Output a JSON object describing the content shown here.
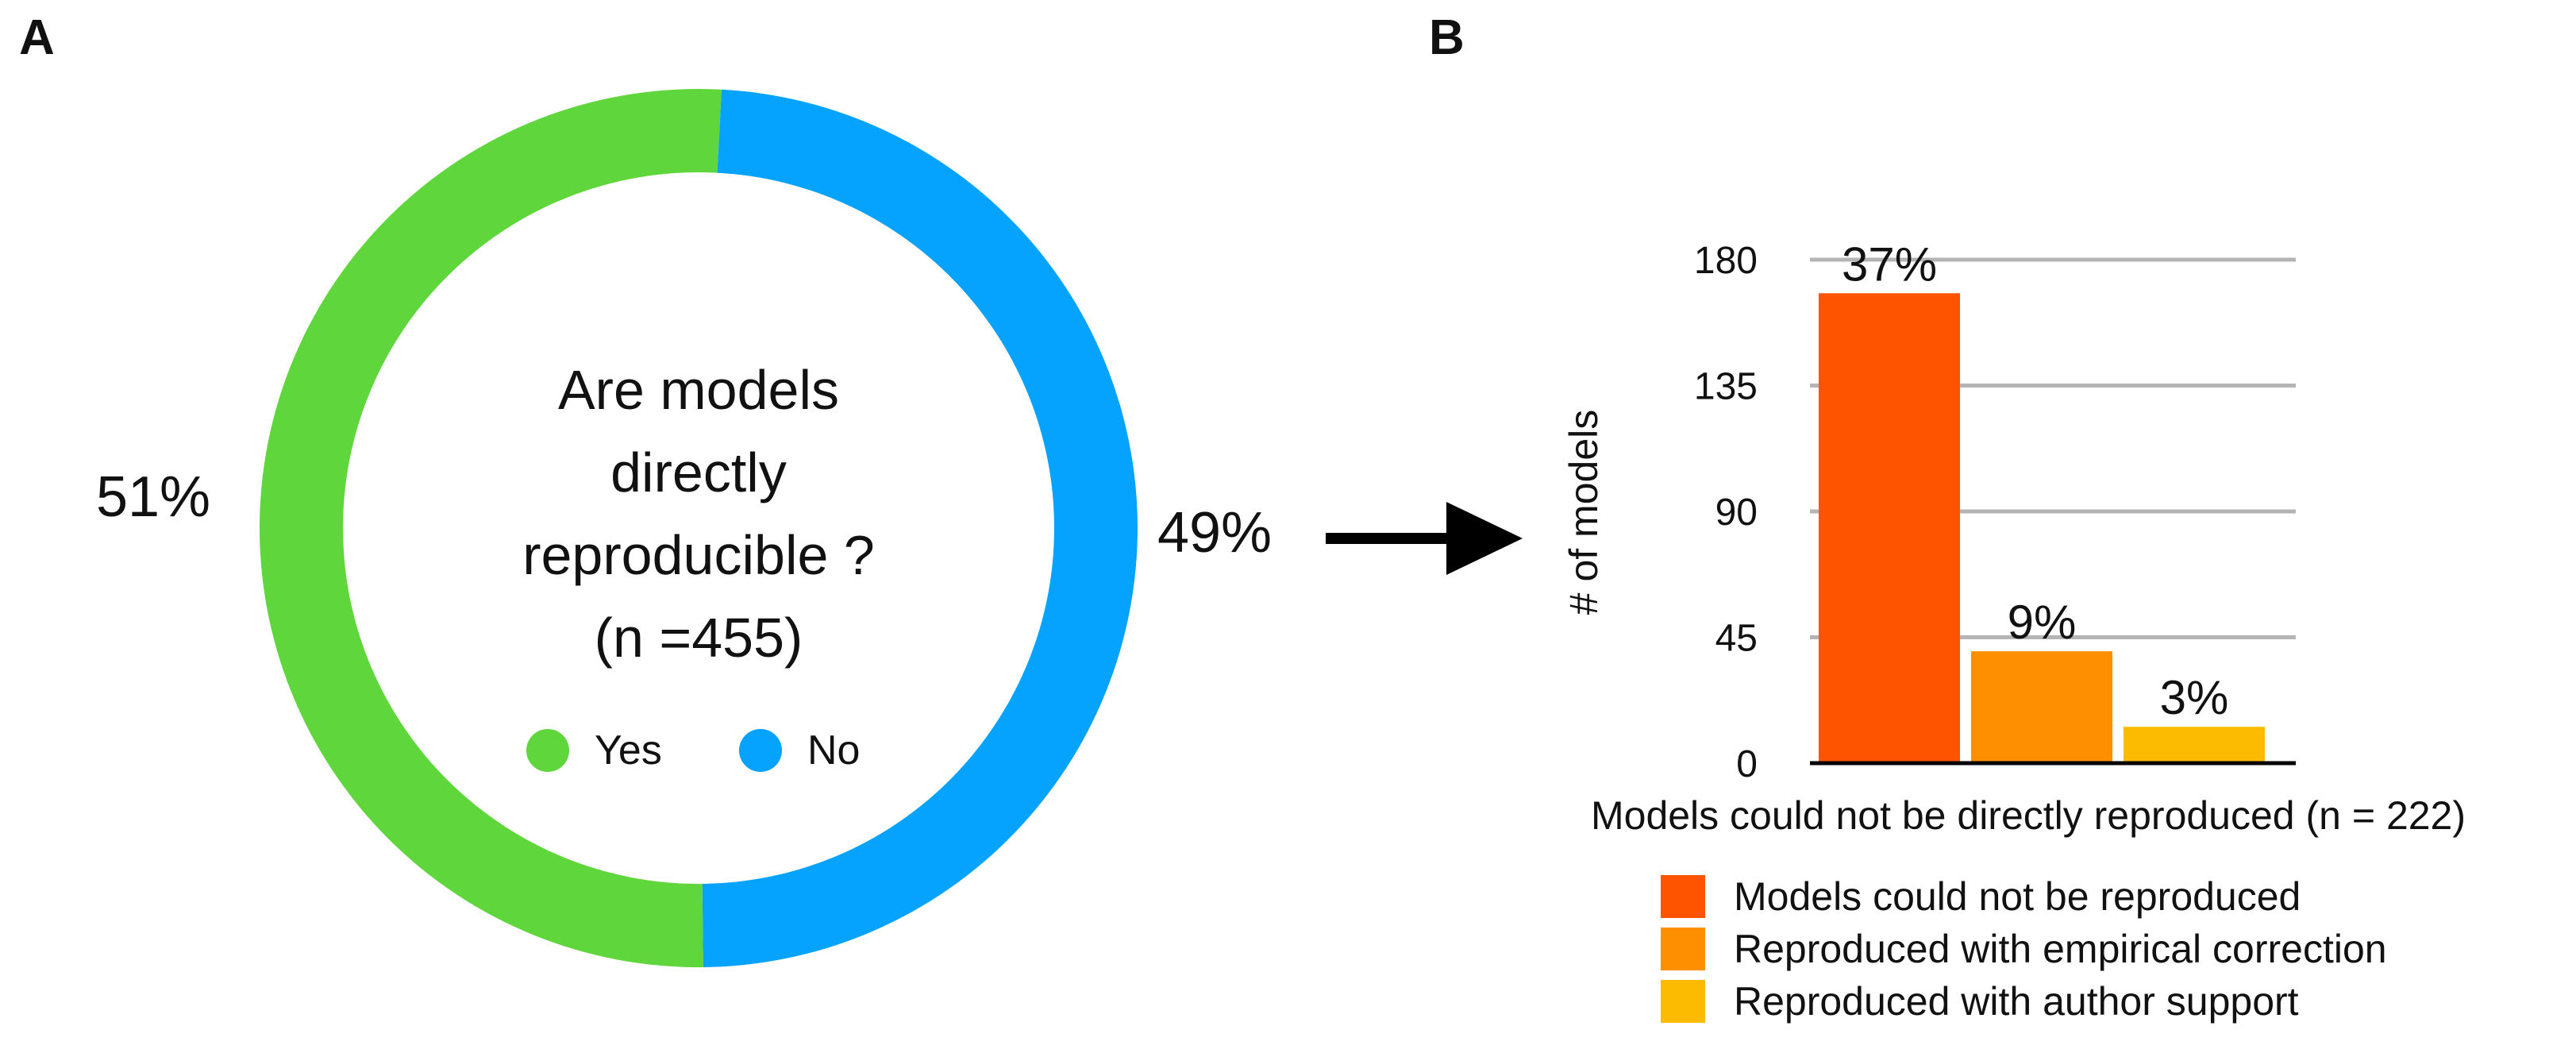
{
  "panels": {
    "a_label": "A",
    "b_label": "B"
  },
  "chart_data": [
    {
      "type": "pie",
      "variant": "donut",
      "center_title_lines": [
        "Are models",
        "directly",
        "reproducible ?",
        "(n =455)"
      ],
      "slices": [
        {
          "label": "Yes",
          "value": 51,
          "value_label": "51%",
          "color": "#5fd73c"
        },
        {
          "label": "No",
          "value": 49,
          "value_label": "49%",
          "color": "#05a2fe"
        }
      ],
      "legend": {
        "placement": "center-inside"
      }
    },
    {
      "type": "bar",
      "categories": [
        "Models could not be reproduced",
        "Reproduced with empirical correction",
        "Reproduced with author support"
      ],
      "values": [
        168,
        40,
        13
      ],
      "value_labels": [
        "37%",
        "9%",
        "3%"
      ],
      "colors": [
        "#fe5400",
        "#fe9000",
        "#fcbb00"
      ],
      "xlabel": "Models could not be directly reproduced (n = 222)",
      "ylabel": "# of models",
      "yticks": [
        0,
        45,
        90,
        135,
        180
      ],
      "ylim": [
        0,
        180
      ],
      "grid": true,
      "legend": {
        "placement": "bottom"
      }
    }
  ]
}
